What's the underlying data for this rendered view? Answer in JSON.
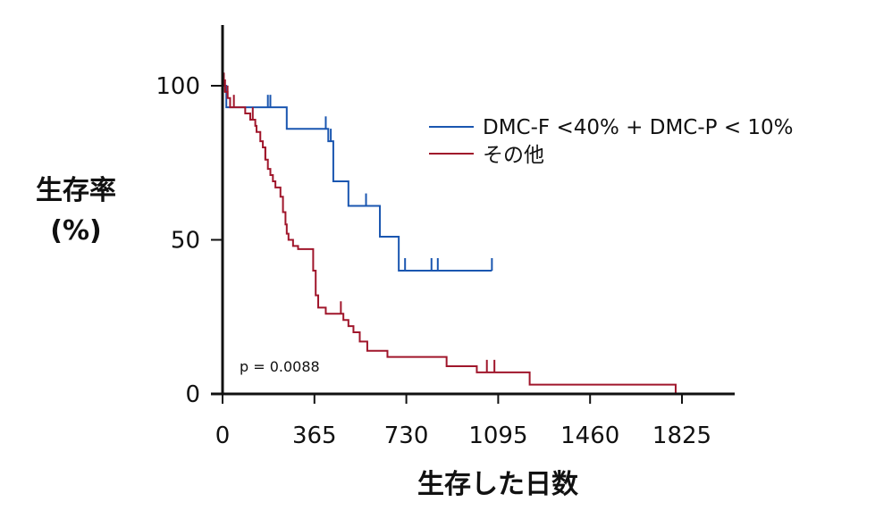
{
  "chart_data": {
    "type": "line",
    "chart_kind": "kaplan-meier step plot",
    "xlabel": "生存した日数",
    "ylabel_lines": [
      "生存率",
      "(%)"
    ],
    "xlim": [
      0,
      2000
    ],
    "ylim": [
      0,
      120
    ],
    "x_ticks": [
      0,
      365,
      730,
      1095,
      1460,
      1825
    ],
    "x_tick_labels": [
      "0",
      "365",
      "730",
      "1095",
      "1460",
      "1825"
    ],
    "y_ticks": [
      0,
      50,
      100
    ],
    "y_tick_labels": [
      "0",
      "50",
      "100"
    ],
    "grid": false,
    "legend_position": "upper-right",
    "annotation": "p = 0.0088",
    "series": [
      {
        "name": "DMC-F <40% + DMC-P < 10%",
        "color": "#1a56b0",
        "steps": [
          [
            0,
            100
          ],
          [
            15,
            93
          ],
          [
            255,
            93
          ],
          [
            255,
            86
          ],
          [
            420,
            86
          ],
          [
            420,
            82
          ],
          [
            440,
            82
          ],
          [
            440,
            69
          ],
          [
            500,
            69
          ],
          [
            500,
            61
          ],
          [
            625,
            61
          ],
          [
            625,
            51
          ],
          [
            700,
            51
          ],
          [
            700,
            40
          ],
          [
            1070,
            40
          ]
        ],
        "censor_x": [
          180,
          190,
          410,
          430,
          570,
          725,
          830,
          855,
          1070
        ]
      },
      {
        "name": "その他",
        "color": "#a0162b",
        "steps": [
          [
            0,
            104
          ],
          [
            5,
            100
          ],
          [
            10,
            98
          ],
          [
            20,
            96
          ],
          [
            30,
            93
          ],
          [
            90,
            93
          ],
          [
            90,
            91
          ],
          [
            110,
            89
          ],
          [
            130,
            87
          ],
          [
            135,
            85
          ],
          [
            150,
            82
          ],
          [
            160,
            80
          ],
          [
            170,
            76
          ],
          [
            180,
            73
          ],
          [
            190,
            71
          ],
          [
            200,
            69
          ],
          [
            210,
            67
          ],
          [
            225,
            67
          ],
          [
            230,
            64
          ],
          [
            240,
            59
          ],
          [
            250,
            55
          ],
          [
            255,
            52
          ],
          [
            262,
            50
          ],
          [
            275,
            50
          ],
          [
            280,
            48
          ],
          [
            300,
            47
          ],
          [
            350,
            47
          ],
          [
            360,
            40
          ],
          [
            370,
            32
          ],
          [
            380,
            28
          ],
          [
            400,
            28
          ],
          [
            410,
            26
          ],
          [
            470,
            26
          ],
          [
            480,
            24
          ],
          [
            500,
            22
          ],
          [
            520,
            20
          ],
          [
            545,
            17
          ],
          [
            575,
            14
          ],
          [
            640,
            14
          ],
          [
            655,
            12
          ],
          [
            840,
            12
          ],
          [
            890,
            9
          ],
          [
            1000,
            9
          ],
          [
            1010,
            7
          ],
          [
            1220,
            7
          ],
          [
            1220,
            3
          ],
          [
            1800,
            3
          ],
          [
            1800,
            0
          ]
        ],
        "censor_x": [
          5,
          10,
          20,
          45,
          120,
          170,
          470,
          1050,
          1080
        ]
      }
    ]
  }
}
